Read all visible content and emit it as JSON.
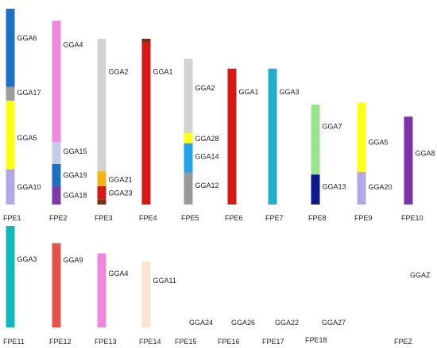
{
  "colors": {
    "dark_blue": "#1f6fc5",
    "gray": "#9e9e9e",
    "yellow": "#ffff1a",
    "light_purple": "#b4a7e6",
    "pink": "#ee88dd",
    "pale_blue": "#c3cdea",
    "blue": "#1e6fc0",
    "purple": "#7b3aa8",
    "light_gray": "#d3d3d3",
    "orange": "#f3b31b",
    "red": "#d41919",
    "brown": "#7a2f10",
    "cyan": "#22aec9",
    "teal": "#13b8b8",
    "sky": "#24a3e8",
    "gray2": "#999999",
    "light_green": "#98e38f",
    "navy": "#0e1a8c",
    "violet": "#7c33a8",
    "coral": "#e0544a",
    "peach": "#fae4d2"
  },
  "chromosomes": [
    {
      "label": "FPE1",
      "row": 1,
      "col": 0,
      "start": 0.02,
      "end": 1.0,
      "segments": [
        {
          "from": 0.0,
          "to": 0.4,
          "color": "dark_blue"
        },
        {
          "from": 0.4,
          "to": 0.47,
          "color": "gray"
        },
        {
          "from": 0.47,
          "to": 0.82,
          "color": "yellow"
        },
        {
          "from": 0.82,
          "to": 1.0,
          "color": "light_purple"
        }
      ],
      "genes": [
        {
          "label": "GGA6",
          "pos": 0.15
        },
        {
          "label": "GGA17",
          "pos": 0.43
        },
        {
          "label": "GGA5",
          "pos": 0.66
        },
        {
          "label": "GGA10",
          "pos": 0.91
        }
      ]
    },
    {
      "label": "FPE2",
      "row": 1,
      "col": 1,
      "start": 0.08,
      "end": 1.0,
      "segments": [
        {
          "from": 0.0,
          "to": 0.66,
          "color": "pink"
        },
        {
          "from": 0.66,
          "to": 0.78,
          "color": "pale_blue"
        },
        {
          "from": 0.78,
          "to": 0.9,
          "color": "blue"
        },
        {
          "from": 0.9,
          "to": 1.0,
          "color": "purple"
        }
      ],
      "genes": [
        {
          "label": "GGA4",
          "pos": 0.13
        },
        {
          "label": "GGA15",
          "pos": 0.71
        },
        {
          "label": "GGA19",
          "pos": 0.84
        },
        {
          "label": "GGA18",
          "pos": 0.95
        }
      ]
    },
    {
      "label": "FPE3",
      "row": 1,
      "col": 2,
      "start": 0.17,
      "end": 1.0,
      "segments": [
        {
          "from": 0.0,
          "to": 0.8,
          "color": "light_gray"
        },
        {
          "from": 0.8,
          "to": 0.89,
          "color": "orange"
        },
        {
          "from": 0.89,
          "to": 0.97,
          "color": "red"
        },
        {
          "from": 0.97,
          "to": 1.0,
          "color": "brown"
        }
      ],
      "genes": [
        {
          "label": "GGA2",
          "pos": 0.2
        },
        {
          "label": "GGA21",
          "pos": 0.85
        },
        {
          "label": "GGA23",
          "pos": 0.93
        }
      ]
    },
    {
      "label": "FPE4",
      "row": 1,
      "col": 3,
      "start": 0.17,
      "end": 1.0,
      "segments": [
        {
          "from": 0.0,
          "to": 0.02,
          "color": "brown"
        },
        {
          "from": 0.02,
          "to": 1.0,
          "color": "red"
        }
      ],
      "genes": [
        {
          "label": "GGA1",
          "pos": 0.2
        }
      ]
    },
    {
      "label": "FPE5",
      "row": 1,
      "col": 4,
      "start": 0.27,
      "end": 1.0,
      "segments": [
        {
          "from": 0.0,
          "to": 0.51,
          "color": "light_gray"
        },
        {
          "from": 0.51,
          "to": 0.58,
          "color": "yellow"
        },
        {
          "from": 0.58,
          "to": 0.78,
          "color": "sky"
        },
        {
          "from": 0.78,
          "to": 1.0,
          "color": "gray2"
        }
      ],
      "genes": [
        {
          "label": "GGA2",
          "pos": 0.2
        },
        {
          "label": "GGA28",
          "pos": 0.55
        },
        {
          "label": "GGA14",
          "pos": 0.67
        },
        {
          "label": "GGA12",
          "pos": 0.87
        }
      ]
    },
    {
      "label": "FPE6",
      "row": 1,
      "col": 5,
      "start": 0.32,
      "end": 1.0,
      "segments": [
        {
          "from": 0.0,
          "to": 1.0,
          "color": "red"
        }
      ],
      "genes": [
        {
          "label": "GGA1",
          "pos": 0.17
        }
      ]
    },
    {
      "label": "FPE7",
      "row": 1,
      "col": 6,
      "start": 0.32,
      "end": 1.0,
      "segments": [
        {
          "from": 0.0,
          "to": 1.0,
          "color": "cyan"
        }
      ],
      "genes": [
        {
          "label": "GGA3",
          "pos": 0.17
        }
      ]
    },
    {
      "label": "FPE8",
      "row": 1,
      "col": 7,
      "start": 0.5,
      "end": 1.0,
      "segments": [
        {
          "from": 0.0,
          "to": 0.7,
          "color": "light_green"
        },
        {
          "from": 0.7,
          "to": 1.0,
          "color": "navy"
        }
      ],
      "genes": [
        {
          "label": "GGA7",
          "pos": 0.22
        },
        {
          "label": "GGA13",
          "pos": 0.82
        }
      ]
    },
    {
      "label": "FPE9",
      "row": 1,
      "col": 8,
      "start": 0.49,
      "end": 1.0,
      "segments": [
        {
          "from": 0.0,
          "to": 0.68,
          "color": "yellow"
        },
        {
          "from": 0.68,
          "to": 1.0,
          "color": "light_purple"
        }
      ],
      "genes": [
        {
          "label": "GGA5",
          "pos": 0.39
        },
        {
          "label": "GGA20",
          "pos": 0.83
        }
      ]
    },
    {
      "label": "FPE10",
      "row": 1,
      "col": 9,
      "start": 0.56,
      "end": 1.0,
      "segments": [
        {
          "from": 0.0,
          "to": 1.0,
          "color": "violet"
        }
      ],
      "genes": [
        {
          "label": "GGA8",
          "pos": 0.42
        }
      ]
    },
    {
      "label": "FPE11",
      "row": 2,
      "col": 0,
      "start": 0.0,
      "end": 1.0,
      "segments": [
        {
          "from": 0.0,
          "to": 1.0,
          "color": "teal"
        }
      ],
      "genes": [
        {
          "label": "GGA3",
          "pos": 0.33
        }
      ]
    },
    {
      "label": "FPE12",
      "row": 2,
      "col": 1,
      "start": 0.17,
      "end": 1.0,
      "segments": [
        {
          "from": 0.0,
          "to": 1.0,
          "color": "coral"
        }
      ],
      "genes": [
        {
          "label": "GGA9",
          "pos": 0.2
        }
      ]
    },
    {
      "label": "FPE13",
      "row": 2,
      "col": 2,
      "start": 0.27,
      "end": 1.0,
      "segments": [
        {
          "from": 0.0,
          "to": 1.0,
          "color": "pink"
        }
      ],
      "genes": [
        {
          "label": "GGA4",
          "pos": 0.27
        }
      ]
    },
    {
      "label": "FPE14",
      "row": 2,
      "col": 3,
      "start": 0.35,
      "end": 1.0,
      "segments": [
        {
          "from": 0.0,
          "to": 1.0,
          "color": "peach"
        }
      ],
      "genes": [
        {
          "label": "GGA11",
          "pos": 0.29
        }
      ]
    },
    {
      "label": "FPE15",
      "row": 2,
      "col": 4,
      "start": null,
      "end": null,
      "segments": [],
      "genes": [
        {
          "label": "GGA24",
          "pos": null
        }
      ]
    },
    {
      "label": "FPE16",
      "row": 2,
      "col": 5,
      "start": null,
      "end": null,
      "segments": [],
      "genes": [
        {
          "label": "GGA26",
          "pos": null
        }
      ]
    },
    {
      "label": "FPE17",
      "row": 2,
      "col": 6,
      "start": null,
      "end": null,
      "segments": [],
      "genes": [
        {
          "label": "GGA22",
          "pos": null
        }
      ]
    },
    {
      "label": "FPE18",
      "row": 2,
      "col": 7,
      "start": null,
      "end": null,
      "segments": [],
      "genes": [
        {
          "label": "GGA27",
          "pos": null
        }
      ]
    },
    {
      "label": "FPEZ",
      "row": 2,
      "col": 9,
      "start": null,
      "end": null,
      "segments": [],
      "genes": [
        {
          "label": "GGAZ",
          "pos": null
        }
      ]
    }
  ]
}
